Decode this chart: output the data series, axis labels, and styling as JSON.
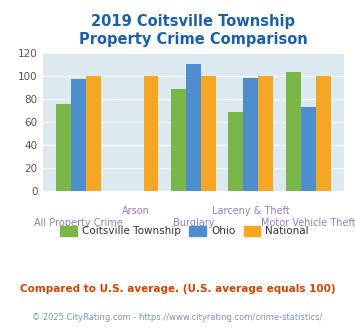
{
  "title": "2019 Coitsville Township\nProperty Crime Comparison",
  "categories": [
    "All Property Crime",
    "Arson",
    "Burglary",
    "Larceny & Theft",
    "Motor Vehicle Theft"
  ],
  "coitsville": [
    76,
    0,
    89,
    69,
    103
  ],
  "ohio": [
    97,
    0,
    110,
    98,
    73
  ],
  "national": [
    100,
    100,
    100,
    100,
    100
  ],
  "color_coitsville": "#7ab648",
  "color_ohio": "#4d8fcc",
  "color_national": "#f5a623",
  "ylim": [
    0,
    120
  ],
  "yticks": [
    0,
    20,
    40,
    60,
    80,
    100,
    120
  ],
  "bg_color": "#dce9f0",
  "title_color": "#1a5fa8",
  "xlabel_color": "#9b7bb5",
  "footnote1": "Compared to U.S. average. (U.S. average equals 100)",
  "footnote2": "© 2025 CityRating.com - https://www.cityrating.com/crime-statistics/",
  "footnote1_color": "#cc4400",
  "footnote2_color": "#7799aa",
  "legend_labels": [
    "Coitsville Township",
    "Ohio",
    "National"
  ]
}
